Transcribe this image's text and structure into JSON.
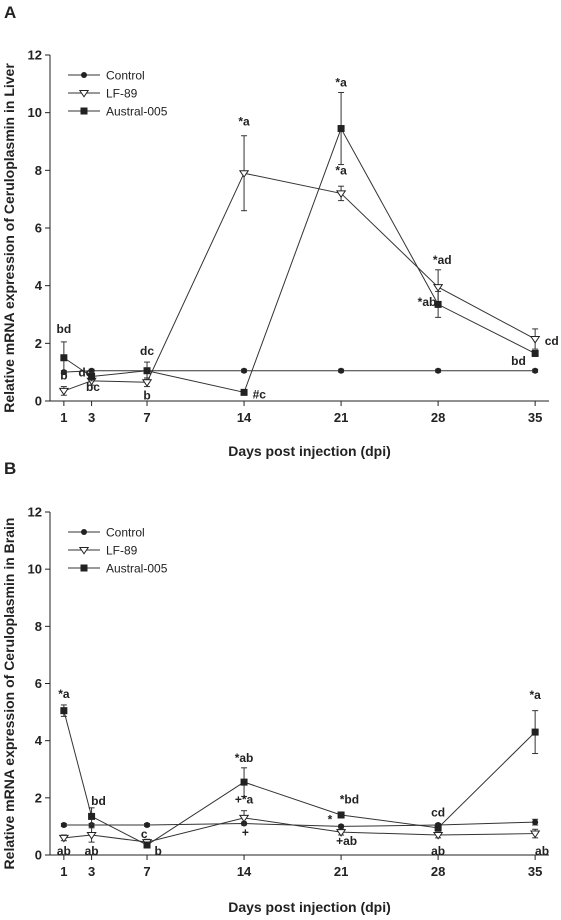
{
  "chart_data": [
    {
      "type": "line",
      "panel": "A",
      "xlabel": "Days post injection (dpi)",
      "ylabel": "Relative mRNA expression of Ceruloplasmin in Liver",
      "x": [
        1,
        3,
        7,
        14,
        21,
        28,
        35
      ],
      "x_ticks": [
        1,
        3,
        7,
        14,
        21,
        28,
        35
      ],
      "ylim": [
        0,
        12
      ],
      "y_ticks": [
        0,
        2,
        4,
        6,
        8,
        10,
        12
      ],
      "grid": false,
      "legend_position": "top-left",
      "series": [
        {
          "name": "Control",
          "marker": "circle",
          "values": [
            1.0,
            1.05,
            1.05,
            1.05,
            1.05,
            1.05,
            1.05
          ],
          "errors": [
            0.05,
            0.05,
            0.05,
            0.05,
            0.05,
            0.05,
            0.05
          ]
        },
        {
          "name": "LF-89",
          "marker": "triangle-down",
          "values": [
            0.35,
            0.7,
            0.65,
            7.9,
            7.2,
            3.95,
            2.15
          ],
          "errors": [
            0.15,
            0.15,
            0.15,
            1.3,
            0.25,
            0.6,
            0.35
          ]
        },
        {
          "name": "Austral-005",
          "marker": "square",
          "values": [
            1.5,
            0.85,
            1.05,
            0.3,
            9.45,
            3.35,
            1.65
          ],
          "errors": [
            0.55,
            0.15,
            0.3,
            0.05,
            1.25,
            0.45,
            0.1
          ]
        }
      ],
      "annotations": [
        {
          "text": "bd",
          "x": 1,
          "y": 2.35
        },
        {
          "text": "b",
          "x": 1,
          "y": 0.75
        },
        {
          "text": "dc",
          "x": 2.55,
          "y": 0.85
        },
        {
          "text": "bc",
          "x": 3.1,
          "y": 0.35
        },
        {
          "text": "dc",
          "x": 7,
          "y": 1.6
        },
        {
          "text": "b",
          "x": 7,
          "y": 0.05
        },
        {
          "text": "*a",
          "x": 14,
          "y": 9.55
        },
        {
          "text": "#c",
          "x": 15.1,
          "y": 0.08
        },
        {
          "text": "*a",
          "x": 21,
          "y": 10.9
        },
        {
          "text": "*a",
          "x": 21,
          "y": 7.85
        },
        {
          "text": "*ad",
          "x": 28.3,
          "y": 4.75
        },
        {
          "text": "*ab",
          "x": 27.2,
          "y": 3.3
        },
        {
          "text": "cd",
          "x": 36.2,
          "y": 1.95
        },
        {
          "text": "bd",
          "x": 33.8,
          "y": 1.25
        }
      ]
    },
    {
      "type": "line",
      "panel": "B",
      "xlabel": "Days post injection (dpi)",
      "ylabel": "Relative mRNA expression of Ceruloplasmin in Brain",
      "x": [
        1,
        3,
        7,
        14,
        21,
        28,
        35
      ],
      "x_ticks": [
        1,
        3,
        7,
        14,
        21,
        28,
        35
      ],
      "ylim": [
        0,
        12
      ],
      "y_ticks": [
        0,
        2,
        4,
        6,
        8,
        10,
        12
      ],
      "grid": false,
      "legend_position": "top-left",
      "series": [
        {
          "name": "Control",
          "marker": "circle",
          "values": [
            1.05,
            1.05,
            1.05,
            1.1,
            1.0,
            1.05,
            1.15
          ],
          "errors": [
            0.05,
            0.05,
            0.05,
            0.05,
            0.05,
            0.05,
            0.1
          ]
        },
        {
          "name": "LF-89",
          "marker": "triangle-down",
          "values": [
            0.6,
            0.7,
            0.45,
            1.3,
            0.8,
            0.7,
            0.75
          ],
          "errors": [
            0.1,
            0.25,
            0.1,
            0.25,
            0.1,
            0.1,
            0.15
          ]
        },
        {
          "name": "Austral-005",
          "marker": "square",
          "values": [
            5.05,
            1.35,
            0.35,
            2.55,
            1.4,
            0.95,
            4.3
          ],
          "errors": [
            0.2,
            0.3,
            0.1,
            0.5,
            0.1,
            0.1,
            0.75
          ]
        }
      ],
      "annotations": [
        {
          "text": "*a",
          "x": 1,
          "y": 5.5
        },
        {
          "text": "ab",
          "x": 1,
          "y": 0.0
        },
        {
          "text": "bd",
          "x": 3.5,
          "y": 1.75
        },
        {
          "text": "ab",
          "x": 3,
          "y": 0.0
        },
        {
          "text": "c",
          "x": 6.8,
          "y": 0.6
        },
        {
          "text": "b",
          "x": 7.8,
          "y": 0.0
        },
        {
          "text": "*ab",
          "x": 14,
          "y": 3.25
        },
        {
          "text": "+*a",
          "x": 14,
          "y": 1.8
        },
        {
          "text": "+",
          "x": 14.1,
          "y": 0.65
        },
        {
          "text": "*bd",
          "x": 21.6,
          "y": 1.8
        },
        {
          "text": "+ab",
          "x": 21.4,
          "y": 0.35
        },
        {
          "text": "*",
          "x": 20.2,
          "y": 1.1
        },
        {
          "text": "cd",
          "x": 28,
          "y": 1.35
        },
        {
          "text": "ab",
          "x": 28,
          "y": 0.0
        },
        {
          "text": "*a",
          "x": 35,
          "y": 5.45
        },
        {
          "text": "ab",
          "x": 35.5,
          "y": 0.0
        }
      ]
    }
  ]
}
